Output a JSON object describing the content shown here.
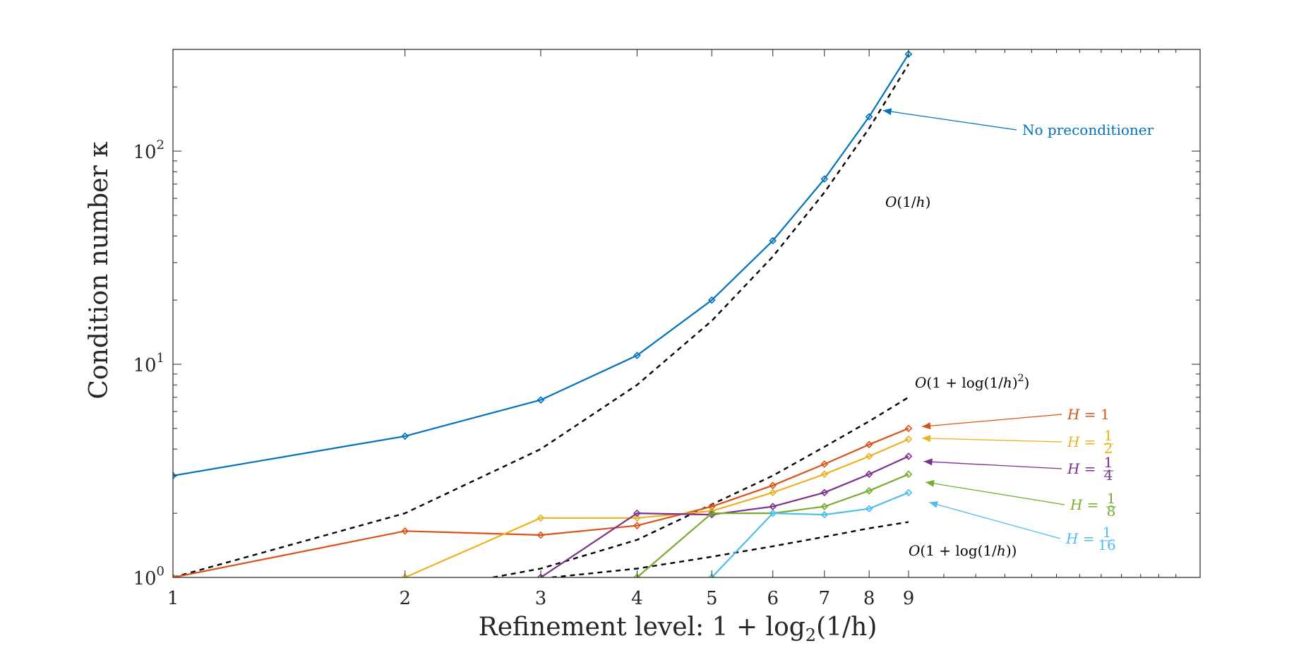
{
  "chart_data": {
    "type": "line",
    "xscale": "log",
    "yscale": "log",
    "xlabel": "Refinement level: 1 + log₂(1/h)",
    "xlabel_parts": {
      "main": "Refinement level: 1 + log",
      "sub": "2",
      "tail": "(1/h)"
    },
    "ylabel": "Condition number κ",
    "xlim": [
      1,
      21.5
    ],
    "ylim": [
      1,
      300
    ],
    "xticks": [
      1,
      2,
      3,
      4,
      5,
      6,
      7,
      8,
      9
    ],
    "xtick_labels": [
      "1",
      "2",
      "3",
      "4",
      "5",
      "6",
      "7",
      "8",
      "9"
    ],
    "yticks": [
      1,
      10,
      100
    ],
    "ytick_labels": [
      {
        "base": "10",
        "exp": "0"
      },
      {
        "base": "10",
        "exp": "1"
      },
      {
        "base": "10",
        "exp": "2"
      }
    ],
    "series": [
      {
        "name": "No preconditioner",
        "color": "#0072BD",
        "x": [
          1,
          2,
          3,
          4,
          5,
          6,
          7,
          8,
          9
        ],
        "values": [
          3.0,
          4.6,
          6.8,
          11.0,
          20.0,
          38.0,
          74.0,
          145.0,
          285.0
        ]
      },
      {
        "name": "H = 1",
        "color": "#D95319",
        "x": [
          1,
          2,
          3,
          4,
          5,
          6,
          7,
          8,
          9
        ],
        "values": [
          1.0,
          1.65,
          1.58,
          1.75,
          2.15,
          2.7,
          3.4,
          4.2,
          5.0
        ]
      },
      {
        "name": "H = 1/2",
        "color": "#EDB120",
        "x": [
          2,
          3,
          4,
          5,
          6,
          7,
          8,
          9
        ],
        "values": [
          1.0,
          1.9,
          1.9,
          2.05,
          2.5,
          3.05,
          3.7,
          4.45
        ]
      },
      {
        "name": "H = 1/4",
        "color": "#7E2F8E",
        "x": [
          3,
          4,
          5,
          6,
          7,
          8,
          9
        ],
        "values": [
          1.0,
          2.0,
          1.97,
          2.15,
          2.5,
          3.05,
          3.7
        ]
      },
      {
        "name": "H = 1/8",
        "color": "#77AC30",
        "x": [
          4,
          5,
          6,
          7,
          8,
          9
        ],
        "values": [
          1.0,
          2.0,
          2.0,
          2.15,
          2.55,
          3.05
        ]
      },
      {
        "name": "H = 1/16",
        "color": "#4DBEEE",
        "x": [
          5,
          6,
          7,
          8,
          9
        ],
        "values": [
          1.0,
          2.0,
          1.97,
          2.1,
          2.5
        ]
      }
    ],
    "reference_lines": [
      {
        "name": "O(1/h)",
        "style": "dashed",
        "color": "#000000",
        "x": [
          1,
          2,
          3,
          4,
          5,
          6,
          7,
          8,
          9
        ],
        "values": [
          1.0,
          2.0,
          4.0,
          8.0,
          16.0,
          32.0,
          64.0,
          128.0,
          256.0
        ]
      },
      {
        "name": "O(1+log(1/h)^2)",
        "style": "dashed",
        "color": "#000000",
        "x": [
          2.6,
          3,
          4,
          5,
          6,
          7,
          8,
          9
        ],
        "values": [
          0.98,
          1.1,
          1.5,
          2.2,
          3.0,
          4.1,
          5.4,
          7.0
        ]
      },
      {
        "name": "O(1+log(1/h))",
        "style": "dashed",
        "color": "#000000",
        "x": [
          3.1,
          4,
          5,
          6,
          7,
          8,
          9
        ],
        "values": [
          0.98,
          1.1,
          1.25,
          1.4,
          1.55,
          1.7,
          1.82
        ]
      }
    ],
    "annotations": [
      {
        "id": "no-precond",
        "text": "No preconditioner",
        "color": "#0072BD",
        "arrow": true,
        "point": [
          8.3,
          160
        ]
      },
      {
        "id": "ref-1h",
        "text": "O(1/h)",
        "color": "#000000",
        "arrow": false
      },
      {
        "id": "ref-log2",
        "text": "O(1 + log(1/h)²)",
        "color": "#000000",
        "arrow": false
      },
      {
        "id": "ref-log",
        "text": "O(1 + log(1/h))",
        "color": "#000000",
        "arrow": false
      },
      {
        "id": "H1",
        "text": "H = 1",
        "color": "#D95319",
        "arrow": true,
        "point": [
          9.25,
          5.1
        ]
      },
      {
        "id": "H2",
        "text": "H = 1/2",
        "color": "#EDB120",
        "frac": {
          "num": "1",
          "den": "2"
        },
        "arrow": true,
        "point": [
          9.25,
          4.5
        ]
      },
      {
        "id": "H4",
        "text": "H = 1/4",
        "color": "#7E2F8E",
        "frac": {
          "num": "1",
          "den": "4"
        },
        "arrow": true,
        "point": [
          9.3,
          3.5
        ]
      },
      {
        "id": "H8",
        "text": "H = 1/8",
        "color": "#77AC30",
        "frac": {
          "num": "1",
          "den": "8"
        },
        "arrow": true,
        "point": [
          9.35,
          2.8
        ]
      },
      {
        "id": "H16",
        "text": "H = 1/16",
        "color": "#4DBEEE",
        "frac": {
          "num": "1",
          "den": "16"
        },
        "arrow": true,
        "point": [
          9.45,
          2.25
        ]
      }
    ],
    "grid": false,
    "legend": "none"
  }
}
